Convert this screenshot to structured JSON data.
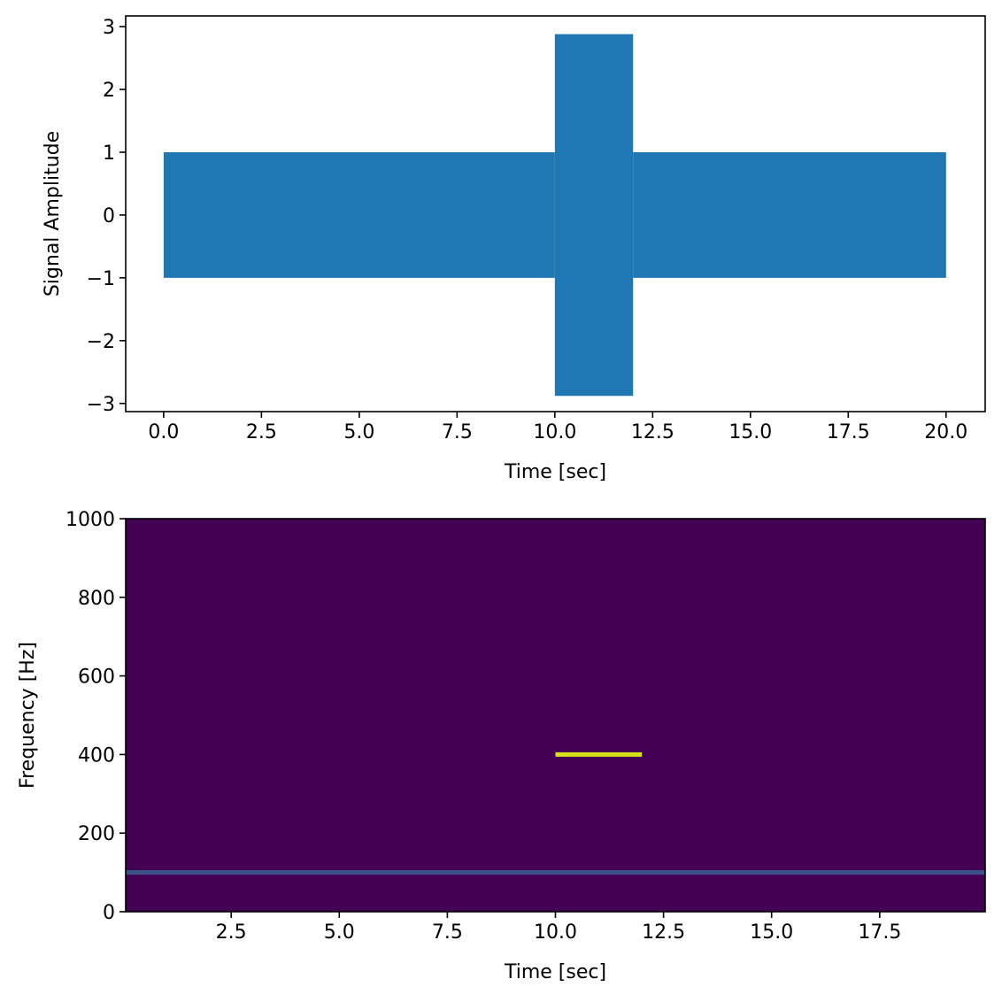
{
  "chart_data": [
    {
      "type": "signal",
      "xlabel": "Time [sec]",
      "ylabel": "Signal Amplitude",
      "color": "#1f77b4",
      "segments": [
        {
          "t": [
            0,
            10
          ],
          "max": 1.0,
          "min": -1.0
        },
        {
          "t": [
            10,
            12
          ],
          "max": 2.88,
          "min": -2.88
        },
        {
          "t": [
            12,
            20
          ],
          "max": 1.0,
          "min": -1.0
        }
      ],
      "xlim": [
        -0.97,
        21.0
      ],
      "xticks": [
        {
          "value": 0,
          "label": "0.0"
        },
        {
          "value": 2.5,
          "label": "2.5"
        },
        {
          "value": 5,
          "label": "5.0"
        },
        {
          "value": 7.5,
          "label": "7.5"
        },
        {
          "value": 10,
          "label": "10.0"
        },
        {
          "value": 12.5,
          "label": "12.5"
        },
        {
          "value": 15,
          "label": "15.0"
        },
        {
          "value": 17.5,
          "label": "17.5"
        },
        {
          "value": 20,
          "label": "20.0"
        }
      ],
      "ylim": [
        -3.13,
        3.17
      ],
      "yticks": [
        {
          "value": -3,
          "label": "−3"
        },
        {
          "value": -2,
          "label": "−2"
        },
        {
          "value": -1,
          "label": "−1"
        },
        0,
        1,
        2,
        3
      ]
    },
    {
      "type": "spectrogram",
      "xlabel": "Time [sec]",
      "ylabel": "Frequency [Hz]",
      "background": "#440154",
      "features": [
        {
          "t": [
            0.06,
            19.94
          ],
          "f": 100,
          "color": "#3b528b"
        },
        {
          "t": [
            10,
            12
          ],
          "f": 400,
          "color": "#d8e219"
        }
      ],
      "xlim": [
        0.06,
        19.94
      ],
      "xticks": [
        2.5,
        {
          "value": 5,
          "label": "5.0"
        },
        7.5,
        {
          "value": 10,
          "label": "10.0"
        },
        12.5,
        {
          "value": 15,
          "label": "15.0"
        },
        17.5
      ],
      "ylim": [
        0,
        1000
      ],
      "yticks": [
        0,
        200,
        400,
        600,
        800,
        1000
      ]
    }
  ]
}
